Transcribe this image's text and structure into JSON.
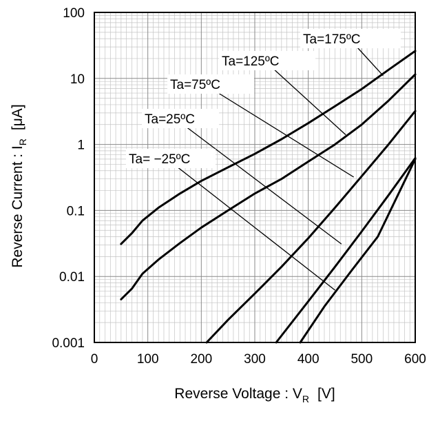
{
  "chart_data": {
    "type": "line",
    "title": "",
    "xlabel": "Reverse Voltage : V",
    "xlabel_sub": "R",
    "xlabel_unit": "[V]",
    "ylabel": "Reverse Current : I",
    "ylabel_sub": "R",
    "ylabel_unit": "[μA]",
    "xlim": [
      0,
      600
    ],
    "ylim": [
      0.001,
      100
    ],
    "y_scale": "log",
    "grid": true,
    "x_ticks": [
      0,
      100,
      200,
      300,
      400,
      500,
      600
    ],
    "x_tick_labels": [
      "0",
      "100",
      "200",
      "300",
      "400",
      "500",
      "600"
    ],
    "y_ticks": [
      0.001,
      0.01,
      0.1,
      1,
      10,
      100
    ],
    "y_tick_labels": [
      "0.001",
      "0.01",
      "0.1",
      "1",
      "10",
      "100"
    ],
    "series": [
      {
        "name": "Ta=175ºC",
        "x": [
          50,
          70,
          90,
          120,
          160,
          200,
          250,
          300,
          350,
          400,
          450,
          500,
          550,
          600
        ],
        "y": [
          0.031,
          0.045,
          0.07,
          0.11,
          0.18,
          0.28,
          0.45,
          0.72,
          1.2,
          2.1,
          3.8,
          6.9,
          13.5,
          26
        ]
      },
      {
        "name": "Ta=125ºC",
        "x": [
          50,
          70,
          90,
          120,
          160,
          200,
          250,
          300,
          350,
          400,
          450,
          500,
          550,
          600
        ],
        "y": [
          0.0045,
          0.0065,
          0.011,
          0.018,
          0.032,
          0.055,
          0.1,
          0.18,
          0.3,
          0.55,
          1.0,
          2.0,
          4.6,
          11.5
        ]
      },
      {
        "name": "Ta=75ºC",
        "x": [
          210,
          250,
          300,
          350,
          400,
          450,
          500,
          550,
          600
        ],
        "y": [
          0.001,
          0.0022,
          0.0055,
          0.014,
          0.038,
          0.11,
          0.33,
          1.0,
          3.2
        ]
      },
      {
        "name": "Ta=25ºC",
        "x": [
          340,
          400,
          450,
          500,
          550,
          600
        ],
        "y": [
          0.001,
          0.0042,
          0.014,
          0.048,
          0.17,
          0.62
        ]
      },
      {
        "name": "Ta= −25ºC",
        "x": [
          385,
          430,
          480,
          530,
          600
        ],
        "y": [
          0.001,
          0.0035,
          0.012,
          0.04,
          0.6
        ]
      }
    ],
    "annotations": [
      {
        "text": "Ta=175ºC",
        "target_x": 540,
        "target_y": 11
      },
      {
        "text": "Ta=125ºC",
        "target_x": 470,
        "target_y": 1.4
      },
      {
        "text": "Ta=75ºC",
        "target_x": 485,
        "target_y": 0.32
      },
      {
        "text": "Ta=25ºC",
        "target_x": 462,
        "target_y": 0.031
      },
      {
        "text": "Ta= −25ºC",
        "target_x": 450,
        "target_y": 0.0062
      }
    ]
  }
}
